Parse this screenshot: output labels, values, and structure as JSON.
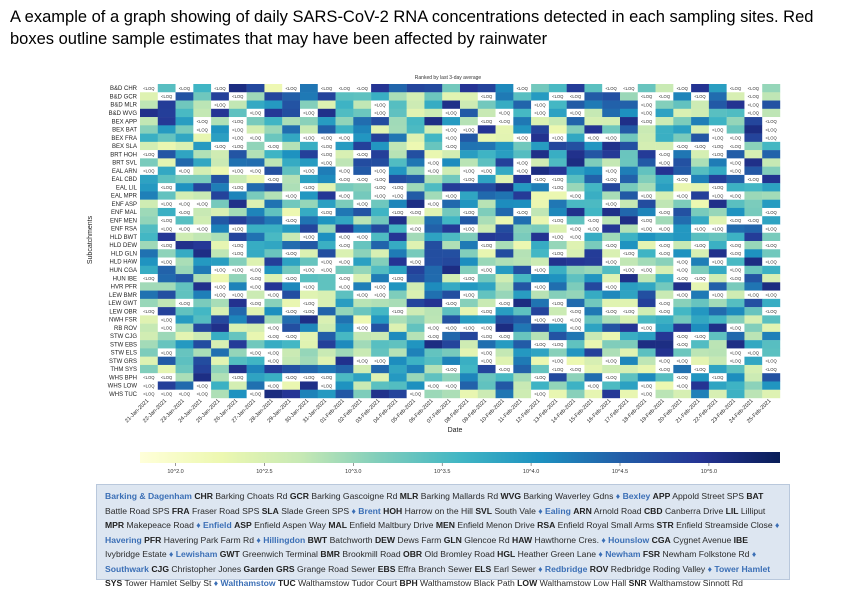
{
  "caption": "A example of a graph showing of daily SARS-CoV-2 RNA concentrations detected in each sampling sites. Red boxes outline sample estimates that may have been affected by rainwater",
  "chart_data": {
    "type": "heatmap",
    "title": "Ranked by last 3-day average",
    "xlabel": "Date",
    "ylabel": "Subcatchments",
    "cell_label_below_detection": "<LOQ",
    "categories_y": [
      "B&D CHR",
      "B&D GCR",
      "B&D MLR",
      "B&D WVG",
      "BEX APP",
      "BEX BAT",
      "BEX FRA",
      "BEX SLA",
      "BRT HOH",
      "BRT SVL",
      "EAL ARN",
      "EAL CBD",
      "EAL LIL",
      "EAL MPR",
      "ENF ASP",
      "ENF MAL",
      "ENF MEN",
      "ENF RSA",
      "HLD BWT",
      "HLD DEW",
      "HLD GLN",
      "HLD HAW",
      "HUN CGA",
      "HUN IBE",
      "HVR PFR",
      "LEW BMR",
      "LEW GWT",
      "LEW OBR",
      "NWH FSR",
      "RB ROV",
      "STW CJG",
      "STW EBS",
      "STW ELS",
      "STW GRS",
      "THM SYS",
      "WHS BPH",
      "WHS LOW",
      "WHS TUC"
    ],
    "categories_x": [
      "21-Jan-2021",
      "22-Jan-2021",
      "23-Jan-2021",
      "24-Jan-2021",
      "25-Jan-2021",
      "26-Jan-2021",
      "27-Jan-2021",
      "28-Jan-2021",
      "29-Jan-2021",
      "30-Jan-2021",
      "31-Jan-2021",
      "01-Feb-2021",
      "02-Feb-2021",
      "03-Feb-2021",
      "04-Feb-2021",
      "05-Feb-2021",
      "06-Feb-2021",
      "07-Feb-2021",
      "08-Feb-2021",
      "09-Feb-2021",
      "10-Feb-2021",
      "11-Feb-2021",
      "12-Feb-2021",
      "13-Feb-2021",
      "14-Feb-2021",
      "15-Feb-2021",
      "16-Feb-2021",
      "17-Feb-2021",
      "18-Feb-2021",
      "19-Feb-2021",
      "20-Feb-2021",
      "21-Feb-2021",
      "22-Feb-2021",
      "23-Feb-2021",
      "24-Feb-2021",
      "25-Feb-2021"
    ],
    "colorbar": {
      "ticks": [
        "10^2.0",
        "10^2.5",
        "10^3.0",
        "10^3.5",
        "10^4.0",
        "10^4.5",
        "10^5.0"
      ],
      "range_log10": [
        1.8,
        5.4
      ],
      "colors": [
        "#ffffd9",
        "#edf8b1",
        "#c7e9b4",
        "#7fcdbb",
        "#41b6c4",
        "#1d91c0",
        "#225ea8",
        "#253494",
        "#081d58"
      ]
    }
  },
  "key": {
    "groups": [
      {
        "borough": "Barking & Dagenham",
        "sites": [
          [
            "CHR",
            "Barking Choats Rd"
          ],
          [
            "GCR",
            "Barking Gascoigne Rd"
          ],
          [
            "MLR",
            "Barking Mallards Rd"
          ],
          [
            "WVG",
            "Barking Waverley Gdns"
          ]
        ]
      },
      {
        "borough": "Bexley",
        "sites": [
          [
            "APP",
            "Appold Street SPS"
          ],
          [
            "BAT",
            "Battle Road SPS"
          ],
          [
            "FRA",
            "Fraser Road SPS"
          ],
          [
            "SLA",
            "Slade Green SPS"
          ]
        ]
      },
      {
        "borough": "Brent",
        "sites": [
          [
            "HOH",
            "Harrow on the Hill"
          ],
          [
            "SVL",
            "South Vale"
          ]
        ]
      },
      {
        "borough": "Ealing",
        "sites": [
          [
            "ARN",
            "Arnold Road"
          ],
          [
            "CBD",
            "Canberra Drive"
          ],
          [
            "LIL",
            "Lilliput"
          ],
          [
            "MPR",
            "Makepeace Road"
          ]
        ]
      },
      {
        "borough": "Enfield",
        "sites": [
          [
            "ASP",
            "Enfield Aspen Way"
          ],
          [
            "MAL",
            "Enfield Maltbury Drive"
          ],
          [
            "MEN",
            "Enfield Menon Drive"
          ],
          [
            "RSA",
            "Enfield Royal Small Arms"
          ],
          [
            "STR",
            "Enfield Streamside Close"
          ]
        ]
      },
      {
        "borough": "Havering",
        "sites": [
          [
            "PFR",
            "Havering Park Farm Rd"
          ]
        ]
      },
      {
        "borough": "Hillingdon",
        "sites": [
          [
            "BWT",
            "Batchworth"
          ],
          [
            "DEW",
            "Dews Farm"
          ],
          [
            "GLN",
            "Glencoe Rd"
          ],
          [
            "HAW",
            "Hawthorne Cres."
          ]
        ]
      },
      {
        "borough": "Hounslow",
        "sites": [
          [
            "CGA",
            "Cygnet Avenue"
          ],
          [
            "IBE",
            "Ivybridge Estate"
          ]
        ]
      },
      {
        "borough": "Lewisham",
        "sites": [
          [
            "GWT",
            "Greenwich Terminal"
          ],
          [
            "BMR",
            "Brookmill Road"
          ],
          [
            "OBR",
            "Old Bromley Road"
          ],
          [
            "HGL",
            "Heather Green Lane"
          ]
        ]
      },
      {
        "borough": "Newham",
        "sites": [
          [
            "FSR",
            "Newham Folkstone Rd"
          ]
        ]
      },
      {
        "borough": "Southwark",
        "sites": [
          [
            "CJG",
            "Christopher Jones"
          ],
          [
            "Garden GRS",
            "Grange Road Sewer"
          ],
          [
            "EBS",
            "Effra Branch Sewer"
          ],
          [
            "ELS",
            "Earl Sewer"
          ]
        ]
      },
      {
        "borough": "Redbridge",
        "sites": [
          [
            "ROV",
            "Redbridge Roding Valley"
          ]
        ]
      },
      {
        "borough": "Tower Hamlet",
        "sites": [
          [
            "SYS",
            "Tower Hamlet Selby St"
          ]
        ]
      },
      {
        "borough": "Walthamstow",
        "sites": [
          [
            "TUC",
            "Walthamstow Tudor Court"
          ],
          [
            "BPH",
            "Walthamstow Black Path"
          ],
          [
            "LOW",
            "Walthamstow Low Hall"
          ],
          [
            "SNR",
            "Walthamstow Sinnott Rd"
          ]
        ]
      }
    ]
  }
}
